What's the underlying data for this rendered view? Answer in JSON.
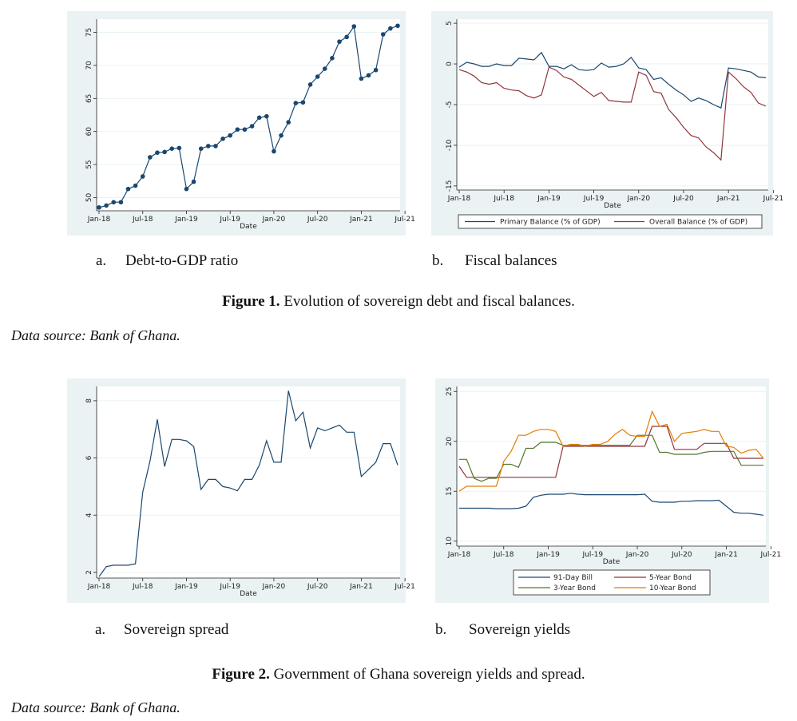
{
  "figure1": {
    "caption_label": "Figure 1.",
    "caption_text": " Evolution of sovereign debt and fiscal balances.",
    "source": "Data source: Bank of Ghana.",
    "sub_a_letter": "a.",
    "sub_a_text": "Debt-to-GDP ratio",
    "sub_b_letter": "b.",
    "sub_b_text": "Fiscal balances"
  },
  "figure2": {
    "caption_label": "Figure 2.",
    "caption_text": " Government of Ghana sovereign yields and spread.",
    "source": "Data source: Bank of Ghana.",
    "sub_a_letter": "a.",
    "sub_a_text": "Sovereign spread",
    "sub_b_letter": "b.",
    "sub_b_text": "Sovereign yields"
  },
  "chart_data": [
    {
      "id": "debt",
      "type": "line",
      "markers": true,
      "xlabel": "Date",
      "ylabel": "",
      "x_ticks": [
        "Jan-18",
        "Jul-18",
        "Jan-19",
        "Jul-19",
        "Jan-20",
        "Jul-20",
        "Jan-21",
        "Jul-21"
      ],
      "ylim": [
        48,
        77
      ],
      "y_ticks": [
        50,
        55,
        60,
        65,
        70,
        75
      ],
      "colors": [
        "#1a476f"
      ],
      "series": [
        {
          "name": "",
          "values": [
            48.5,
            48.8,
            49.3,
            49.3,
            51.3,
            51.8,
            53.2,
            56.1,
            56.8,
            56.9,
            57.4,
            57.5,
            51.3,
            52.4,
            57.4,
            57.8,
            57.8,
            58.9,
            59.4,
            60.3,
            60.3,
            60.8,
            62.1,
            62.3,
            57.0,
            59.4,
            61.4,
            64.3,
            64.4,
            67.1,
            68.3,
            69.5,
            71.1,
            73.6,
            74.3,
            75.9,
            68.0,
            68.5,
            69.3,
            74.7,
            75.6,
            76.0
          ]
        }
      ]
    },
    {
      "id": "fiscal",
      "type": "line",
      "xlabel": "Date",
      "ylabel": "",
      "x_ticks": [
        "Jan-18",
        "Jul-18",
        "Jan-19",
        "Jul-19",
        "Jan-20",
        "Jul-20",
        "Jan-21",
        "Jul-21"
      ],
      "ylim": [
        -15.5,
        5.5
      ],
      "y_ticks": [
        5,
        0,
        -5,
        -10,
        -15
      ],
      "legend_position": "bottom",
      "colors": [
        "#1a476f",
        "#90353b"
      ],
      "series": [
        {
          "name": "Primary Balance (% of GDP)",
          "values": [
            -0.4,
            0.2,
            0.0,
            -0.3,
            -0.3,
            0.0,
            -0.2,
            -0.2,
            0.7,
            0.6,
            0.5,
            1.4,
            -0.3,
            -0.3,
            -0.6,
            -0.1,
            -0.7,
            -0.8,
            -0.7,
            0.1,
            -0.4,
            -0.3,
            0.0,
            0.8,
            -0.5,
            -0.7,
            -1.9,
            -1.7,
            -2.5,
            -3.2,
            -3.8,
            -4.6,
            -4.2,
            -4.5,
            -5.0,
            -5.4,
            -0.5,
            -0.6,
            -0.8,
            -1.0,
            -1.6,
            -1.7
          ]
        },
        {
          "name": "Overall Balance (% of GDP)",
          "values": [
            -0.7,
            -1.0,
            -1.5,
            -2.3,
            -2.5,
            -2.3,
            -3.0,
            -3.2,
            -3.3,
            -3.9,
            -4.2,
            -3.8,
            -0.4,
            -0.8,
            -1.6,
            -1.9,
            -2.6,
            -3.3,
            -4.0,
            -3.5,
            -4.5,
            -4.6,
            -4.7,
            -4.7,
            -1.0,
            -1.4,
            -3.4,
            -3.6,
            -5.6,
            -6.6,
            -7.8,
            -8.8,
            -9.1,
            -10.2,
            -10.9,
            -11.8,
            -1.0,
            -1.8,
            -2.8,
            -3.5,
            -4.8,
            -5.2
          ]
        }
      ]
    },
    {
      "id": "spread",
      "type": "line",
      "xlabel": "Date",
      "ylabel": "",
      "x_ticks": [
        "Jan-18",
        "Jul-18",
        "Jan-19",
        "Jul-19",
        "Jan-20",
        "Jul-20",
        "Jan-21",
        "Jul-21"
      ],
      "ylim": [
        1.8,
        8.5
      ],
      "y_ticks": [
        2,
        4,
        6,
        8
      ],
      "colors": [
        "#1a476f"
      ],
      "series": [
        {
          "name": "",
          "values": [
            1.85,
            2.2,
            2.25,
            2.25,
            2.25,
            2.3,
            4.8,
            5.9,
            7.35,
            5.7,
            6.65,
            6.65,
            6.6,
            6.4,
            4.9,
            5.25,
            5.25,
            5.0,
            4.95,
            4.85,
            5.25,
            5.25,
            5.75,
            6.6,
            5.85,
            5.85,
            8.35,
            7.3,
            7.6,
            6.35,
            7.05,
            6.95,
            7.05,
            7.15,
            6.9,
            6.9,
            5.35,
            5.6,
            5.85,
            6.5,
            6.5,
            5.75
          ]
        }
      ]
    },
    {
      "id": "yields",
      "type": "line",
      "xlabel": "Date",
      "ylabel": "",
      "x_ticks": [
        "Jan-18",
        "Jul-18",
        "Jan-19",
        "Jul-19",
        "Jan-20",
        "Jul-20",
        "Jan-21",
        "Jul-21"
      ],
      "ylim": [
        9.5,
        25.5
      ],
      "y_ticks": [
        10,
        15,
        20,
        25
      ],
      "legend_position": "bottom",
      "colors": [
        "#1a476f",
        "#90353b",
        "#55752f",
        "#e37e00"
      ],
      "series": [
        {
          "name": "91-Day Bill",
          "values": [
            13.3,
            13.3,
            13.3,
            13.3,
            13.3,
            13.25,
            13.25,
            13.25,
            13.3,
            13.5,
            14.4,
            14.6,
            14.7,
            14.7,
            14.7,
            14.8,
            14.7,
            14.65,
            14.65,
            14.65,
            14.65,
            14.65,
            14.65,
            14.65,
            14.65,
            14.7,
            14.0,
            13.9,
            13.9,
            13.9,
            14.0,
            14.0,
            14.05,
            14.05,
            14.05,
            14.1,
            13.5,
            12.9,
            12.8,
            12.8,
            12.7,
            12.6
          ]
        },
        {
          "name": "5-Year Bond",
          "values": [
            17.5,
            16.4,
            16.4,
            16.4,
            16.4,
            16.4,
            16.4,
            16.4,
            16.4,
            16.4,
            16.4,
            16.4,
            16.4,
            16.4,
            19.5,
            19.5,
            19.5,
            19.5,
            19.5,
            19.5,
            19.5,
            19.5,
            19.5,
            19.5,
            19.5,
            19.5,
            21.5,
            21.5,
            21.5,
            19.2,
            19.2,
            19.2,
            19.2,
            19.8,
            19.8,
            19.8,
            19.8,
            18.3,
            18.3,
            18.3,
            18.3,
            18.3
          ]
        },
        {
          "name": "3-Year Bond",
          "values": [
            18.2,
            18.2,
            16.3,
            16.0,
            16.3,
            16.3,
            17.7,
            17.7,
            17.4,
            19.3,
            19.3,
            19.9,
            19.9,
            19.9,
            19.6,
            19.6,
            19.6,
            19.6,
            19.6,
            19.6,
            19.6,
            19.6,
            19.6,
            19.6,
            20.6,
            20.6,
            20.6,
            18.9,
            18.9,
            18.7,
            18.7,
            18.7,
            18.7,
            18.9,
            19.0,
            19.0,
            19.0,
            19.0,
            17.6,
            17.6,
            17.6,
            17.6
          ]
        },
        {
          "name": "10-Year Bond",
          "values": [
            15.0,
            15.5,
            15.5,
            15.5,
            15.5,
            15.5,
            18.0,
            19.0,
            20.6,
            20.6,
            21.0,
            21.2,
            21.2,
            21.0,
            19.5,
            19.7,
            19.7,
            19.5,
            19.7,
            19.7,
            20.0,
            20.7,
            21.2,
            20.6,
            20.5,
            20.5,
            23.0,
            21.5,
            21.7,
            20.0,
            20.8,
            20.9,
            21.0,
            21.2,
            21.0,
            21.0,
            19.5,
            19.4,
            18.8,
            19.1,
            19.2,
            18.3
          ]
        }
      ]
    }
  ]
}
